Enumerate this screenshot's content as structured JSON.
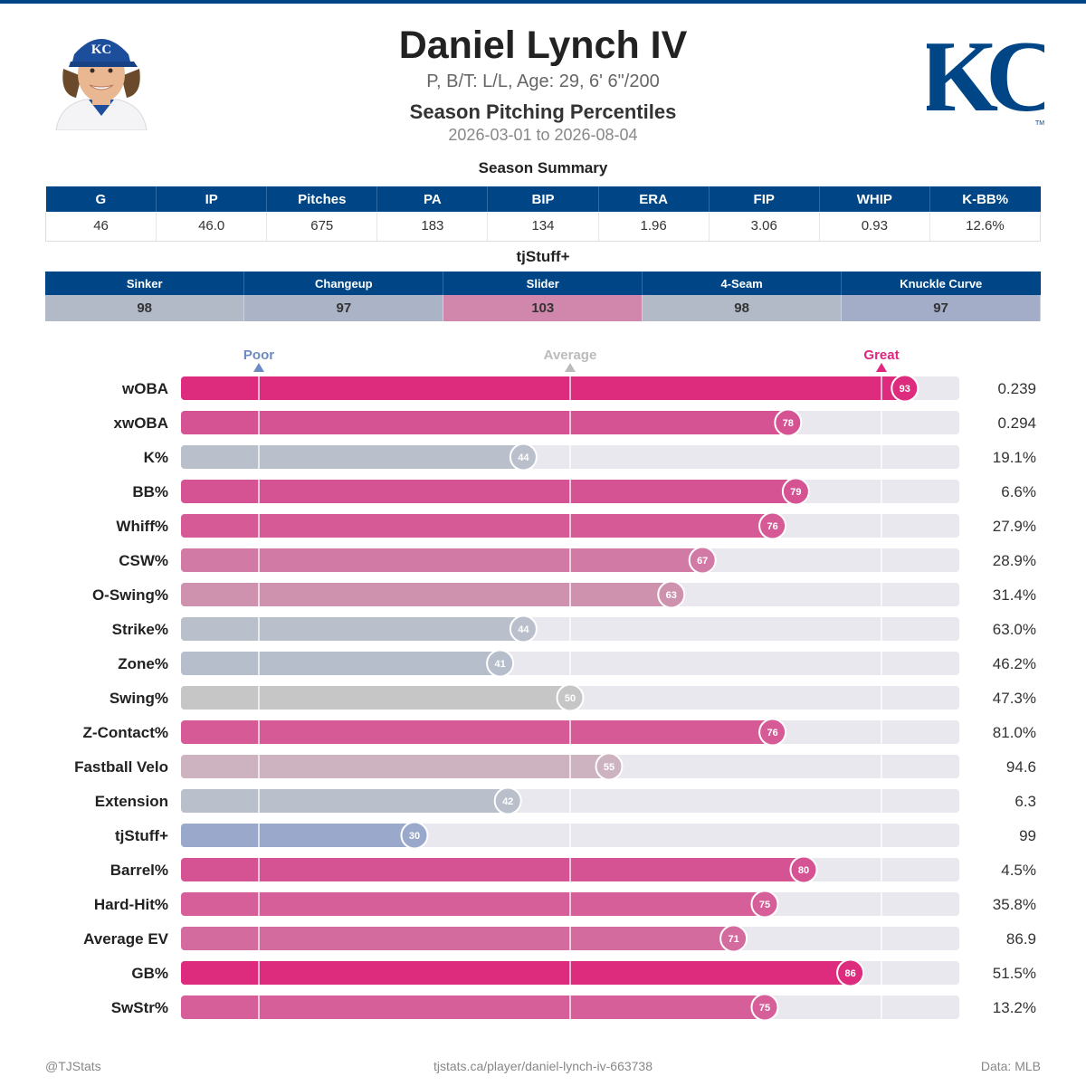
{
  "header": {
    "name": "Daniel Lynch IV",
    "bio": "P, B/T: L/L, Age: 29, 6' 6\"/200",
    "subtitle": "Season Pitching Percentiles",
    "date_range": "2026-03-01 to 2026-08-04",
    "team_logo_text": "KC",
    "cap_logo_text": "KC"
  },
  "season_summary": {
    "title": "Season Summary",
    "columns": [
      "G",
      "IP",
      "Pitches",
      "PA",
      "BIP",
      "ERA",
      "FIP",
      "WHIP",
      "K-BB%"
    ],
    "values": [
      "46",
      "46.0",
      "675",
      "183",
      "134",
      "1.96",
      "3.06",
      "0.93",
      "12.6%"
    ]
  },
  "tjstuff": {
    "title": "tjStuff+",
    "pitches": [
      {
        "name": "Sinker",
        "value": "98",
        "color": "#b3bac7"
      },
      {
        "name": "Changeup",
        "value": "97",
        "color": "#abb4c6"
      },
      {
        "name": "Slider",
        "value": "103",
        "color": "#d087ab"
      },
      {
        "name": "4-Seam",
        "value": "98",
        "color": "#b3bac7"
      },
      {
        "name": "Knuckle Curve",
        "value": "97",
        "color": "#a3adc8"
      }
    ]
  },
  "chart_data": {
    "type": "bar",
    "orientation": "horizontal",
    "title": "Season Pitching Percentiles",
    "xlim": [
      0,
      100
    ],
    "markers": [
      {
        "label": "Poor",
        "value": 10,
        "color": "#6d8ac2"
      },
      {
        "label": "Average",
        "value": 50,
        "color": "#bbbbbb"
      },
      {
        "label": "Great",
        "value": 90,
        "color": "#e0267f"
      }
    ],
    "categories": [
      "wOBA",
      "xwOBA",
      "K%",
      "BB%",
      "Whiff%",
      "CSW%",
      "O-Swing%",
      "Strike%",
      "Zone%",
      "Swing%",
      "Z-Contact%",
      "Fastball Velo",
      "Extension",
      "tjStuff+",
      "Barrel%",
      "Hard-Hit%",
      "Average EV",
      "GB%",
      "SwStr%"
    ],
    "percentiles": [
      93,
      78,
      44,
      79,
      76,
      67,
      63,
      44,
      41,
      50,
      76,
      55,
      42,
      30,
      80,
      75,
      71,
      86,
      75
    ],
    "stat_values": [
      "0.239",
      "0.294",
      "19.1%",
      "6.6%",
      "27.9%",
      "28.9%",
      "31.4%",
      "63.0%",
      "46.2%",
      "47.3%",
      "81.0%",
      "94.6",
      "6.3",
      "99",
      "4.5%",
      "35.8%",
      "86.9",
      "51.5%",
      "13.2%"
    ],
    "colors": [
      "#dd2b7e",
      "#d65393",
      "#b9bfcb",
      "#d65393",
      "#d65a96",
      "#d07aa5",
      "#cf92ae",
      "#b9bfcb",
      "#b6bdcb",
      "#c6c6c6",
      "#d65a96",
      "#cdb2c0",
      "#b9bfcb",
      "#9aa9cb",
      "#d65393",
      "#d65f99",
      "#d46b9e",
      "#dd2b7e",
      "#d65f99"
    ],
    "track_color": "#e8e8ee"
  },
  "footer": {
    "left": "@TJStats",
    "center": "tjstats.ca/player/daniel-lynch-iv-663738",
    "right": "Data: MLB"
  }
}
